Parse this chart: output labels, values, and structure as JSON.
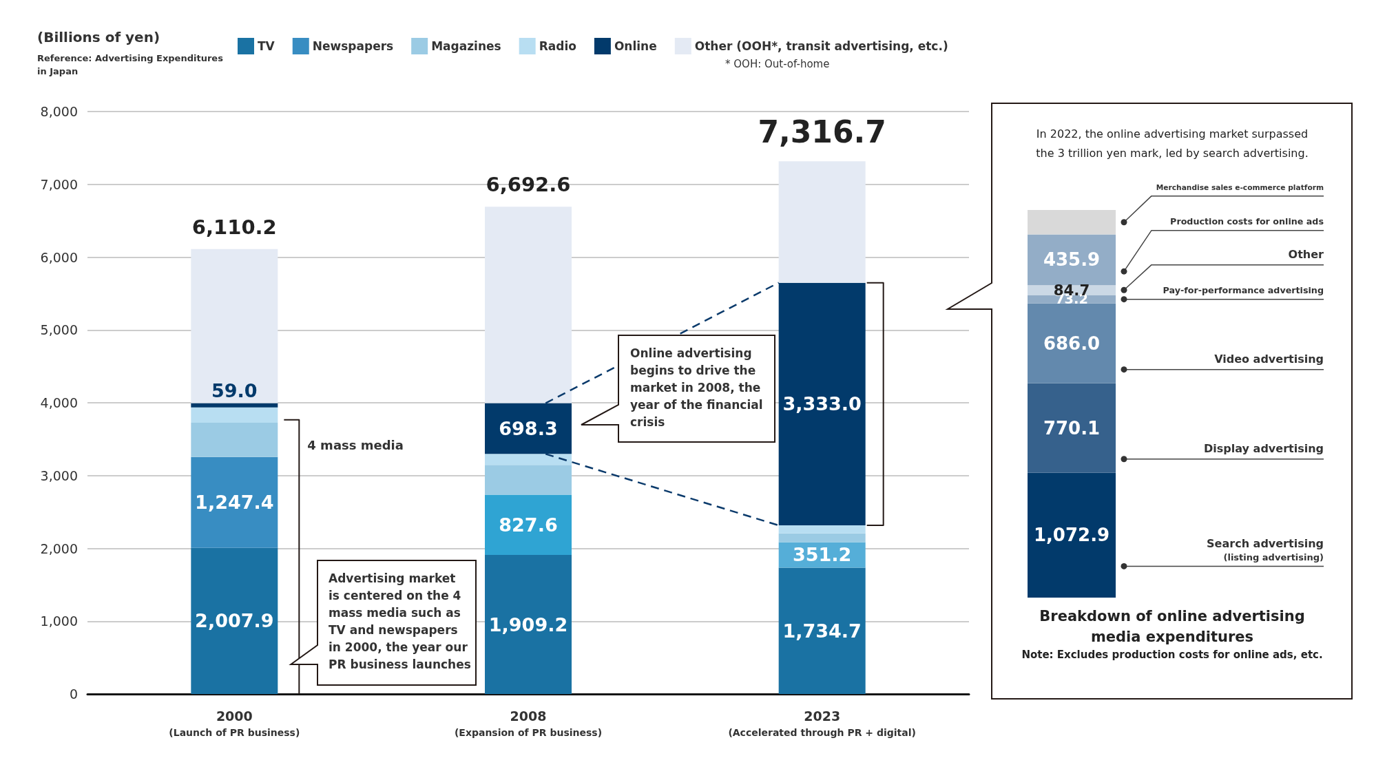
{
  "chart_data": [
    {
      "type": "bar",
      "stacked": true,
      "ylabel": "(Billions of yen)",
      "categories": [
        "2000\n(Launch of PR business)",
        "2008\n(Expansion of PR business)",
        "2023\n(Accelerated through PR + digital)"
      ],
      "series": [
        {
          "name": "TV",
          "color": "#1a72a3",
          "values": [
            2007.9,
            1909.2,
            1734.7
          ],
          "value_labels": [
            "2,007.9",
            "1,909.2",
            "1,734.7"
          ]
        },
        {
          "name": "Newspapers",
          "color": "#388dc2",
          "colors": [
            "#388dc2",
            "#2fa4d3",
            "#55aed8"
          ],
          "values": [
            1247.4,
            827.6,
            351.2
          ],
          "value_labels": [
            "1,247.4",
            "827.6",
            "351.2"
          ]
        },
        {
          "name": "Magazines",
          "color": "#9bcbe4",
          "values": [
            470,
            410,
            120
          ]
        },
        {
          "name": "Radio",
          "color": "#b8def2",
          "values": [
            210,
            150,
            110
          ]
        },
        {
          "name": "Online",
          "color": "#023a6b",
          "values": [
            59.0,
            698.3,
            3333.0
          ],
          "value_labels": [
            "59.0",
            "698.3",
            "3,333.0"
          ]
        },
        {
          "name": "Other (OOH*, transit advertising, etc.)",
          "color": "#e4eaf4",
          "values": [
            2115.9,
            2697.5,
            1667.8
          ]
        }
      ],
      "totals": [
        "6,110.2",
        "6,692.6",
        "7,316.7"
      ],
      "ylim": [
        0,
        8000
      ],
      "yticks": [
        0,
        {
          "value": 1000,
          "label": "1,000"
        },
        {
          "value": 2000,
          "label": "2,000"
        },
        {
          "value": 3000,
          "label": "3,000"
        },
        {
          "value": 4000,
          "label": "4,000"
        },
        {
          "value": 5000,
          "label": "5,000"
        },
        {
          "value": 6000,
          "label": "6,000"
        },
        {
          "value": 7000,
          "label": "7,000"
        },
        {
          "value": 8000,
          "label": "8,000"
        }
      ],
      "grid": "y",
      "legend": "top",
      "annotations": [
        "Reference: Advertising Expenditures\nin Japan",
        "* OOH: Out-of-home",
        "4 mass media",
        "Advertising market\nis centered on the 4\nmass media such as\nTV and newspapers\nin 2000, the year our\nPR business launches",
        "Online advertising\nbegins to drive the\nmarket in 2008, the\nyear of the financial\ncrisis"
      ]
    },
    {
      "type": "bar",
      "stacked": true,
      "title": "Breakdown of online advertising\nmedia expenditures",
      "subtitle": "Note: Excludes production costs for online ads, etc.",
      "categories": [
        null
      ],
      "series": [
        {
          "name": "Search advertising\n(listing advertising)",
          "color": "#023a6b",
          "values": [
            1072.9
          ],
          "value_labels": [
            "1,072.9"
          ]
        },
        {
          "name": "Display advertising",
          "color": "#36618c",
          "values": [
            770.1
          ],
          "value_labels": [
            "770.1"
          ]
        },
        {
          "name": "Video advertising",
          "color": "#6389ad",
          "values": [
            686.0
          ],
          "value_labels": [
            "686.0"
          ]
        },
        {
          "name": "Pay-for-performance advertising",
          "color": "#93adc7",
          "values": [
            73.2
          ],
          "value_labels": [
            "73.2"
          ]
        },
        {
          "name": "Other",
          "color": "#cbd8e5",
          "values": [
            84.7
          ],
          "value_labels": [
            "84.7"
          ]
        },
        {
          "name": "Production costs for online ads",
          "color": "#93adc7",
          "values": [
            435.9
          ],
          "value_labels": [
            "435.9"
          ]
        },
        {
          "name": "Merchandise sales e-commerce platform",
          "color": "#d9d9d9",
          "values": [
            210.2
          ]
        }
      ],
      "annotations": [
        "In 2022, the online advertising market surpassed\nthe 3 trillion yen mark, led by search advertising."
      ]
    }
  ]
}
